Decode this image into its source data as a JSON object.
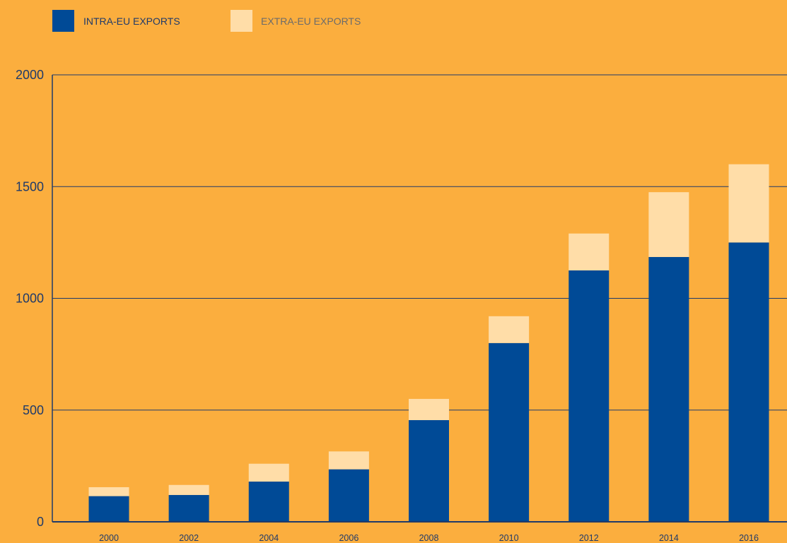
{
  "chart_data": {
    "type": "bar",
    "stacked": true,
    "categories": [
      "2000",
      "2002",
      "2004",
      "2006",
      "2008",
      "2010",
      "2012",
      "2014",
      "2016"
    ],
    "series": [
      {
        "name": "INTRA-EU EXPORTS",
        "color": "#004A96",
        "values": [
          115,
          120,
          180,
          235,
          455,
          800,
          1125,
          1185,
          1250
        ]
      },
      {
        "name": "EXTRA-EU EXPORTS",
        "color": "#FFDDA8",
        "values": [
          40,
          45,
          80,
          80,
          95,
          120,
          165,
          290,
          350
        ]
      }
    ],
    "ylim": [
      0,
      2000
    ],
    "yticks": [
      "0",
      "500",
      "1000",
      "1500",
      "2000"
    ],
    "grid": true,
    "legend_position": "top-left",
    "background_color": "#FBAE3E",
    "axis_color": "#1F3A6A"
  }
}
